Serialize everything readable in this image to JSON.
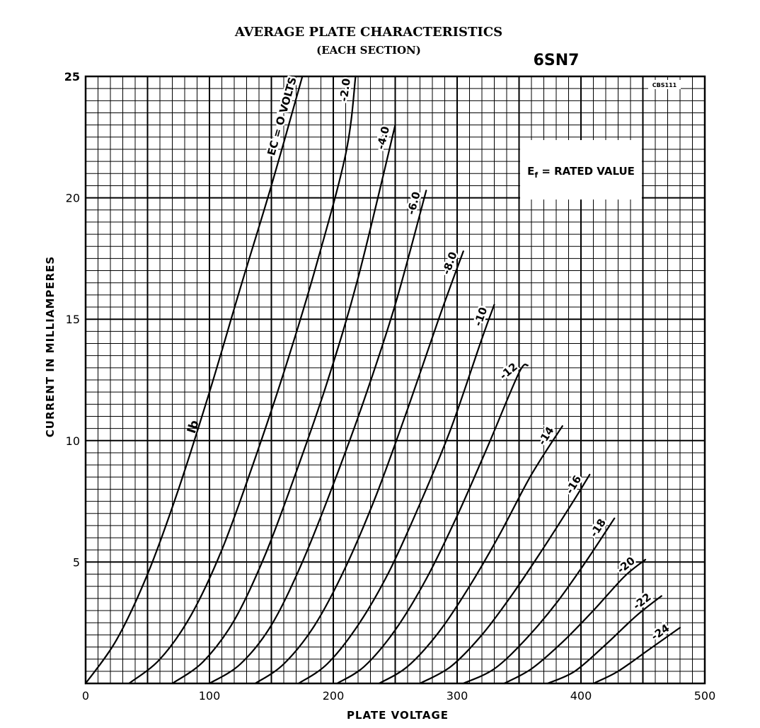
{
  "title": "AVERAGE PLATE CHARACTERISTICS",
  "subtitle": "(EACH SECTION)",
  "tube": "6SN7",
  "code": "CBS111",
  "note_prefix": "E",
  "note_sub": "f",
  "note_rest": " = RATED VALUE",
  "xlabel": "PLATE VOLTAGE",
  "ylabel": "CURRENT IN MILLIAMPERES",
  "ib_label": "Ib",
  "chart_data": {
    "type": "line",
    "title": "AVERAGE PLATE CHARACTERISTICS",
    "subtitle": "(EACH SECTION)",
    "xlabel": "PLATE VOLTAGE",
    "ylabel": "CURRENT IN MILLIAMPERES",
    "xlim": [
      0,
      500
    ],
    "ylim": [
      0,
      25
    ],
    "xticks": [
      0,
      100,
      200,
      300,
      400,
      500
    ],
    "yticks": [
      5,
      10,
      15,
      20,
      25
    ],
    "grid": true,
    "series": [
      {
        "name": "EC = O VOLTS",
        "x": [
          0,
          25,
          50,
          75,
          100,
          125,
          150,
          175
        ],
        "y": [
          0,
          1.8,
          4.5,
          8.0,
          12.0,
          16.3,
          20.5,
          25
        ]
      },
      {
        "name": "-2.0",
        "x": [
          35,
          60,
          85,
          110,
          135,
          160,
          185,
          210,
          218
        ],
        "y": [
          0,
          1.0,
          2.8,
          5.5,
          9.0,
          12.8,
          17.0,
          21.8,
          25
        ]
      },
      {
        "name": "-4.0",
        "x": [
          70,
          95,
          120,
          145,
          170,
          195,
          220,
          250
        ],
        "y": [
          0,
          0.9,
          2.6,
          5.3,
          8.7,
          12.4,
          16.7,
          23.0
        ]
      },
      {
        "name": "-6.0",
        "x": [
          100,
          125,
          150,
          175,
          200,
          225,
          250,
          275
        ],
        "y": [
          0,
          0.8,
          2.4,
          5.0,
          8.2,
          11.7,
          15.6,
          20.3
        ]
      },
      {
        "name": "-8.0",
        "x": [
          137,
          160,
          185,
          210,
          235,
          260,
          285,
          305
        ],
        "y": [
          0,
          0.8,
          2.4,
          4.8,
          7.8,
          11.3,
          15.0,
          17.8
        ]
      },
      {
        "name": "-10",
        "x": [
          172,
          195,
          220,
          245,
          270,
          295,
          320,
          330
        ],
        "y": [
          0,
          0.8,
          2.4,
          4.6,
          7.4,
          10.5,
          14.2,
          15.6
        ]
      },
      {
        "name": "-12",
        "x": [
          203,
          225,
          250,
          275,
          300,
          325,
          350,
          357
        ],
        "y": [
          0,
          0.7,
          2.2,
          4.3,
          6.9,
          9.8,
          12.8,
          13.1
        ]
      },
      {
        "name": "-14",
        "x": [
          237,
          260,
          285,
          310,
          335,
          360,
          385
        ],
        "y": [
          0,
          0.7,
          2.1,
          4.0,
          6.2,
          8.6,
          10.6
        ]
      },
      {
        "name": "-16",
        "x": [
          270,
          295,
          320,
          345,
          370,
          395,
          407
        ],
        "y": [
          0,
          0.7,
          2.0,
          3.7,
          5.6,
          7.6,
          8.6
        ]
      },
      {
        "name": "-18",
        "x": [
          305,
          330,
          355,
          380,
          405,
          427
        ],
        "y": [
          0,
          0.6,
          1.8,
          3.3,
          5.1,
          6.8
        ]
      },
      {
        "name": "-20",
        "x": [
          338,
          360,
          385,
          410,
          435,
          452
        ],
        "y": [
          0,
          0.6,
          1.7,
          3.0,
          4.4,
          5.1
        ]
      },
      {
        "name": "-22",
        "x": [
          373,
          395,
          420,
          445,
          465
        ],
        "y": [
          0,
          0.5,
          1.6,
          2.8,
          3.6
        ]
      },
      {
        "name": "-24",
        "x": [
          410,
          430,
          455,
          480
        ],
        "y": [
          0,
          0.5,
          1.4,
          2.3
        ]
      }
    ]
  },
  "colors": {
    "ink": "#000000",
    "paper": "#ffffff"
  }
}
